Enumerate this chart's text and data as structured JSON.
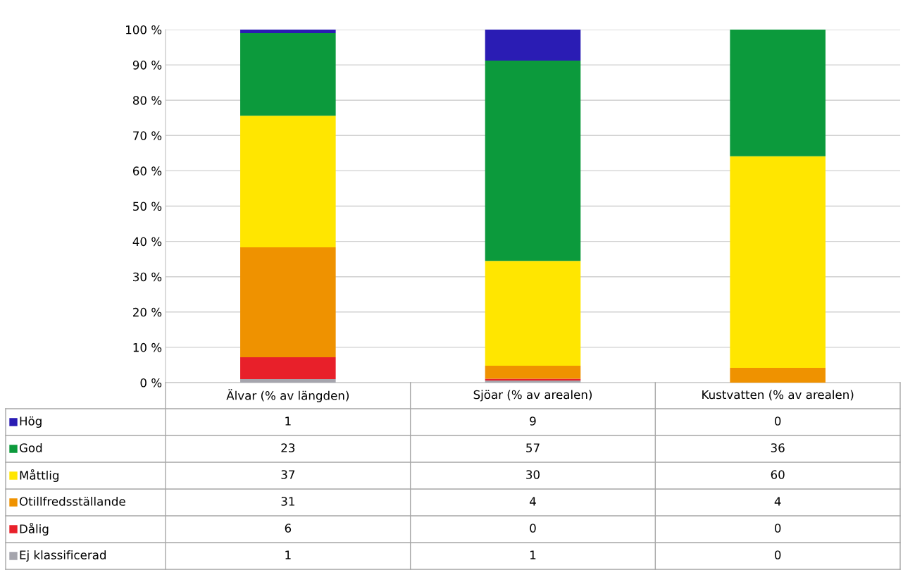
{
  "chart_data": {
    "type": "bar",
    "stacked": true,
    "categories": [
      "Älvar (% av längden)",
      "Sjöar (% av arealen)",
      "Kustvatten (% av arealen)"
    ],
    "series": [
      {
        "name": "Ej klassificerad",
        "color": "#a5a5ad",
        "values": [
          1.0,
          0.6,
          0
        ],
        "value_labels": [
          "1",
          "1",
          "0"
        ]
      },
      {
        "name": "Dålig",
        "color": "#e8202a",
        "values": [
          6.2,
          0.5,
          0
        ],
        "value_labels": [
          "6",
          "0",
          "0"
        ]
      },
      {
        "name": "Otillfredsställande",
        "color": "#ef9200",
        "values": [
          31.1,
          3.7,
          4.2
        ],
        "value_labels": [
          "31",
          "4",
          "4"
        ]
      },
      {
        "name": "Måttlig",
        "color": "#ffe600",
        "values": [
          37.3,
          29.7,
          59.9
        ],
        "value_labels": [
          "37",
          "30",
          "60"
        ]
      },
      {
        "name": "God",
        "color": "#0c9a3c",
        "values": [
          23.4,
          56.7,
          35.9
        ],
        "value_labels": [
          "23",
          "57",
          "36"
        ]
      },
      {
        "name": "Hög",
        "color": "#2a1cb4",
        "values": [
          1.0,
          8.8,
          0
        ],
        "value_labels": [
          "1",
          "9",
          "0"
        ]
      }
    ],
    "ylim": [
      0,
      100
    ],
    "yticks": [
      {
        "value": 0,
        "label": "0 %"
      },
      {
        "value": 10,
        "label": "10 %"
      },
      {
        "value": 20,
        "label": "20 %"
      },
      {
        "value": 30,
        "label": "30 %"
      },
      {
        "value": 40,
        "label": "40 %"
      },
      {
        "value": 50,
        "label": "50 %"
      },
      {
        "value": 60,
        "label": "60 %"
      },
      {
        "value": 70,
        "label": "70 %"
      },
      {
        "value": 80,
        "label": "80 %"
      },
      {
        "value": 90,
        "label": "90 %"
      },
      {
        "value": 100,
        "label": "100 %"
      }
    ],
    "grid": "y",
    "legend": "bottom"
  }
}
